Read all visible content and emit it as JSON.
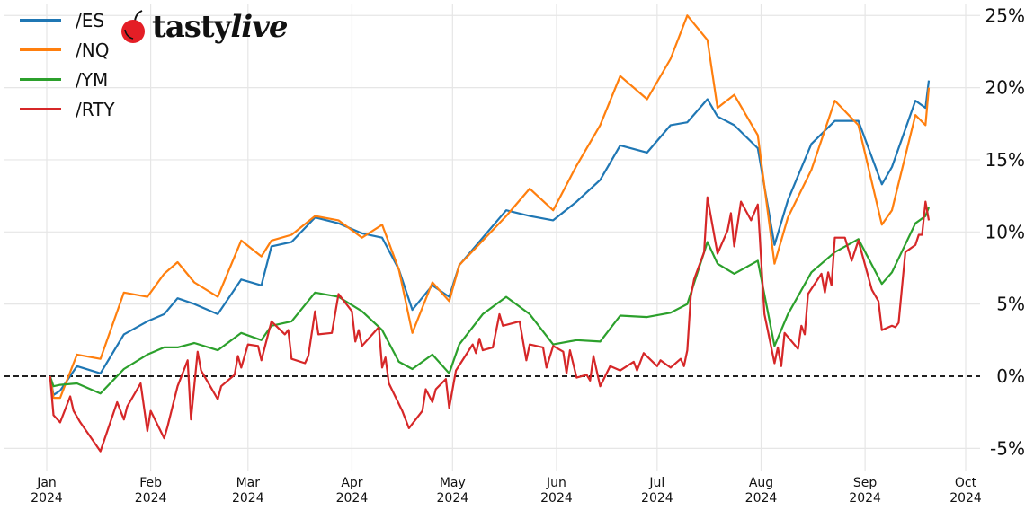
{
  "logo": {
    "text_main": "tasty",
    "text_italic": "live"
  },
  "chart_data": {
    "type": "line",
    "title": "",
    "xlabel": "",
    "ylabel": "",
    "ylim": [
      -6.5,
      25.3
    ],
    "xlim": [
      "2023-12-24",
      "2024-10-06"
    ],
    "grid": true,
    "legend_position": "top-left",
    "y_axis_side": "right",
    "reference_line": {
      "value": 0,
      "style": "dashed",
      "color": "#000000"
    },
    "y_ticks": [
      {
        "value": -5,
        "label": "-5%"
      },
      {
        "value": 0,
        "label": "0%"
      },
      {
        "value": 5,
        "label": "5%"
      },
      {
        "value": 10,
        "label": "10%"
      },
      {
        "value": 15,
        "label": "15%"
      },
      {
        "value": 20,
        "label": "20%"
      },
      {
        "value": 25,
        "label": "25%"
      }
    ],
    "x_ticks": [
      {
        "date": "2024-01-01",
        "month": "Jan",
        "year": "2024"
      },
      {
        "date": "2024-02-01",
        "month": "Feb",
        "year": "2024"
      },
      {
        "date": "2024-03-01",
        "month": "Mar",
        "year": "2024"
      },
      {
        "date": "2024-04-01",
        "month": "Apr",
        "year": "2024"
      },
      {
        "date": "2024-05-01",
        "month": "May",
        "year": "2024"
      },
      {
        "date": "2024-06-01",
        "month": "Jun",
        "year": "2024"
      },
      {
        "date": "2024-07-01",
        "month": "Jul",
        "year": "2024"
      },
      {
        "date": "2024-08-01",
        "month": "Aug",
        "year": "2024"
      },
      {
        "date": "2024-09-01",
        "month": "Sep",
        "year": "2024"
      },
      {
        "date": "2024-10-01",
        "month": "Oct",
        "year": "2024"
      }
    ],
    "series": [
      {
        "name": "/ES",
        "color": "#1f77b4",
        "x": [
          "2024-01-02",
          "2024-01-03",
          "2024-01-05",
          "2024-01-10",
          "2024-01-17",
          "2024-01-24",
          "2024-01-31",
          "2024-02-05",
          "2024-02-09",
          "2024-02-14",
          "2024-02-21",
          "2024-02-28",
          "2024-03-05",
          "2024-03-08",
          "2024-03-14",
          "2024-03-21",
          "2024-03-28",
          "2024-04-04",
          "2024-04-10",
          "2024-04-15",
          "2024-04-19",
          "2024-04-25",
          "2024-04-30",
          "2024-05-03",
          "2024-05-10",
          "2024-05-17",
          "2024-05-24",
          "2024-05-31",
          "2024-06-07",
          "2024-06-14",
          "2024-06-20",
          "2024-06-28",
          "2024-07-05",
          "2024-07-10",
          "2024-07-16",
          "2024-07-19",
          "2024-07-24",
          "2024-07-31",
          "2024-08-05",
          "2024-08-09",
          "2024-08-16",
          "2024-08-23",
          "2024-08-30",
          "2024-09-06",
          "2024-09-09",
          "2024-09-16",
          "2024-09-19",
          "2024-09-20"
        ],
        "y": [
          0,
          -1.3,
          -1.0,
          0.7,
          0.2,
          2.9,
          3.8,
          4.3,
          5.4,
          5.0,
          4.3,
          6.7,
          6.3,
          9.0,
          9.3,
          11.0,
          10.6,
          9.9,
          9.6,
          7.4,
          4.6,
          6.3,
          5.5,
          7.7,
          9.6,
          11.5,
          11.1,
          10.8,
          12.1,
          13.6,
          16.0,
          15.5,
          17.4,
          17.6,
          19.2,
          18.0,
          17.4,
          15.8,
          9.1,
          12.2,
          16.1,
          17.7,
          17.7,
          13.3,
          14.5,
          19.1,
          18.6,
          20.5
        ]
      },
      {
        "name": "/NQ",
        "color": "#ff7f0e",
        "x": [
          "2024-01-02",
          "2024-01-03",
          "2024-01-05",
          "2024-01-10",
          "2024-01-17",
          "2024-01-24",
          "2024-01-31",
          "2024-02-05",
          "2024-02-09",
          "2024-02-14",
          "2024-02-21",
          "2024-02-28",
          "2024-03-05",
          "2024-03-08",
          "2024-03-14",
          "2024-03-21",
          "2024-03-28",
          "2024-04-04",
          "2024-04-10",
          "2024-04-15",
          "2024-04-19",
          "2024-04-25",
          "2024-04-30",
          "2024-05-03",
          "2024-05-10",
          "2024-05-17",
          "2024-05-24",
          "2024-05-31",
          "2024-06-07",
          "2024-06-14",
          "2024-06-20",
          "2024-06-28",
          "2024-07-05",
          "2024-07-10",
          "2024-07-16",
          "2024-07-19",
          "2024-07-24",
          "2024-07-31",
          "2024-08-05",
          "2024-08-09",
          "2024-08-16",
          "2024-08-23",
          "2024-08-30",
          "2024-09-06",
          "2024-09-09",
          "2024-09-16",
          "2024-09-19",
          "2024-09-20"
        ],
        "y": [
          0,
          -1.5,
          -1.5,
          1.5,
          1.2,
          5.8,
          5.5,
          7.1,
          7.9,
          6.5,
          5.5,
          9.4,
          8.3,
          9.4,
          9.8,
          11.1,
          10.8,
          9.6,
          10.5,
          7.4,
          3.0,
          6.5,
          5.2,
          7.7,
          9.4,
          11.1,
          13.0,
          11.5,
          14.6,
          17.4,
          20.8,
          19.2,
          22.0,
          25.0,
          23.3,
          18.6,
          19.5,
          16.7,
          7.8,
          11.0,
          14.3,
          19.1,
          17.4,
          10.5,
          11.5,
          18.1,
          17.4,
          20.0
        ]
      },
      {
        "name": "/YM",
        "color": "#2ca02c",
        "x": [
          "2024-01-02",
          "2024-01-03",
          "2024-01-05",
          "2024-01-10",
          "2024-01-17",
          "2024-01-24",
          "2024-01-31",
          "2024-02-05",
          "2024-02-09",
          "2024-02-14",
          "2024-02-21",
          "2024-02-28",
          "2024-03-05",
          "2024-03-08",
          "2024-03-14",
          "2024-03-21",
          "2024-03-28",
          "2024-04-04",
          "2024-04-10",
          "2024-04-15",
          "2024-04-19",
          "2024-04-25",
          "2024-04-30",
          "2024-05-03",
          "2024-05-10",
          "2024-05-17",
          "2024-05-24",
          "2024-05-31",
          "2024-06-07",
          "2024-06-14",
          "2024-06-20",
          "2024-06-28",
          "2024-07-05",
          "2024-07-10",
          "2024-07-16",
          "2024-07-19",
          "2024-07-24",
          "2024-07-31",
          "2024-08-05",
          "2024-08-09",
          "2024-08-16",
          "2024-08-23",
          "2024-08-30",
          "2024-09-06",
          "2024-09-09",
          "2024-09-16",
          "2024-09-19",
          "2024-09-20"
        ],
        "y": [
          0,
          -0.7,
          -0.6,
          -0.5,
          -1.2,
          0.5,
          1.5,
          2.0,
          2.0,
          2.3,
          1.8,
          3.0,
          2.5,
          3.5,
          3.8,
          5.8,
          5.5,
          4.5,
          3.2,
          1.0,
          0.5,
          1.5,
          0.2,
          2.2,
          4.3,
          5.5,
          4.3,
          2.2,
          2.5,
          2.4,
          4.2,
          4.1,
          4.4,
          5.0,
          9.3,
          7.8,
          7.1,
          8.0,
          2.1,
          4.3,
          7.2,
          8.6,
          9.5,
          6.4,
          7.2,
          10.6,
          11.1,
          11.7
        ]
      },
      {
        "name": "/RTY",
        "color": "#d62728",
        "x": [
          "2024-01-02",
          "2024-01-03",
          "2024-01-05",
          "2024-01-08",
          "2024-01-09",
          "2024-01-11",
          "2024-01-17",
          "2024-01-22",
          "2024-01-24",
          "2024-01-25",
          "2024-01-29",
          "2024-01-31",
          "2024-02-01",
          "2024-02-05",
          "2024-02-06",
          "2024-02-09",
          "2024-02-12",
          "2024-02-13",
          "2024-02-15",
          "2024-02-16",
          "2024-02-21",
          "2024-02-22",
          "2024-02-26",
          "2024-02-27",
          "2024-02-28",
          "2024-03-01",
          "2024-03-04",
          "2024-03-05",
          "2024-03-08",
          "2024-03-12",
          "2024-03-13",
          "2024-03-14",
          "2024-03-18",
          "2024-03-19",
          "2024-03-21",
          "2024-03-22",
          "2024-03-26",
          "2024-03-28",
          "2024-04-01",
          "2024-04-02",
          "2024-04-03",
          "2024-04-04",
          "2024-04-09",
          "2024-04-10",
          "2024-04-11",
          "2024-04-12",
          "2024-04-16",
          "2024-04-18",
          "2024-04-22",
          "2024-04-23",
          "2024-04-25",
          "2024-04-26",
          "2024-04-29",
          "2024-04-30",
          "2024-05-02",
          "2024-05-07",
          "2024-05-08",
          "2024-05-09",
          "2024-05-10",
          "2024-05-13",
          "2024-05-15",
          "2024-05-16",
          "2024-05-21",
          "2024-05-23",
          "2024-05-24",
          "2024-05-28",
          "2024-05-29",
          "2024-05-31",
          "2024-06-03",
          "2024-06-04",
          "2024-06-05",
          "2024-06-07",
          "2024-06-10",
          "2024-06-11",
          "2024-06-12",
          "2024-06-14",
          "2024-06-17",
          "2024-06-20",
          "2024-06-24",
          "2024-06-25",
          "2024-06-27",
          "2024-07-01",
          "2024-07-02",
          "2024-07-05",
          "2024-07-08",
          "2024-07-09",
          "2024-07-10",
          "2024-07-11",
          "2024-07-12",
          "2024-07-15",
          "2024-07-16",
          "2024-07-17",
          "2024-07-19",
          "2024-07-22",
          "2024-07-23",
          "2024-07-24",
          "2024-07-26",
          "2024-07-29",
          "2024-07-31",
          "2024-08-02",
          "2024-08-05",
          "2024-08-06",
          "2024-08-07",
          "2024-08-08",
          "2024-08-12",
          "2024-08-13",
          "2024-08-14",
          "2024-08-15",
          "2024-08-19",
          "2024-08-20",
          "2024-08-21",
          "2024-08-22",
          "2024-08-23",
          "2024-08-26",
          "2024-08-28",
          "2024-08-30",
          "2024-09-03",
          "2024-09-05",
          "2024-09-06",
          "2024-09-09",
          "2024-09-10",
          "2024-09-11",
          "2024-09-13",
          "2024-09-16",
          "2024-09-17",
          "2024-09-18",
          "2024-09-19",
          "2024-09-20"
        ],
        "y": [
          0,
          -2.7,
          -3.2,
          -1.4,
          -2.4,
          -3.2,
          -5.2,
          -1.8,
          -3.0,
          -2.1,
          -0.5,
          -3.8,
          -2.4,
          -4.3,
          -3.5,
          -0.7,
          1.1,
          -3.0,
          1.7,
          0.4,
          -1.6,
          -0.7,
          0.1,
          1.4,
          0.6,
          2.2,
          2.1,
          1.1,
          3.8,
          2.9,
          3.2,
          1.2,
          0.9,
          1.4,
          4.5,
          2.9,
          3.0,
          5.7,
          4.5,
          2.4,
          3.2,
          2.1,
          3.4,
          0.6,
          1.3,
          -0.5,
          -2.4,
          -3.6,
          -2.4,
          -0.9,
          -1.8,
          -0.9,
          -0.2,
          -2.2,
          0.4,
          2.2,
          1.6,
          2.6,
          1.8,
          2.0,
          4.3,
          3.5,
          3.8,
          1.1,
          2.2,
          2.0,
          0.6,
          2.1,
          1.7,
          0.2,
          1.8,
          -0.1,
          0.1,
          -0.3,
          1.4,
          -0.7,
          0.7,
          0.4,
          1.0,
          0.4,
          1.6,
          0.7,
          1.1,
          0.6,
          1.2,
          0.7,
          1.8,
          5.5,
          6.7,
          8.6,
          12.4,
          11.1,
          8.5,
          10.1,
          11.3,
          9.0,
          12.1,
          10.8,
          11.9,
          4.3,
          0.9,
          2.0,
          0.7,
          3.0,
          1.9,
          3.5,
          2.9,
          5.7,
          7.1,
          5.8,
          7.2,
          6.3,
          9.6,
          9.6,
          8.0,
          9.4,
          6.0,
          5.2,
          3.2,
          3.5,
          3.4,
          3.7,
          8.6,
          9.1,
          9.8,
          9.8,
          12.1,
          10.8
        ]
      }
    ]
  }
}
